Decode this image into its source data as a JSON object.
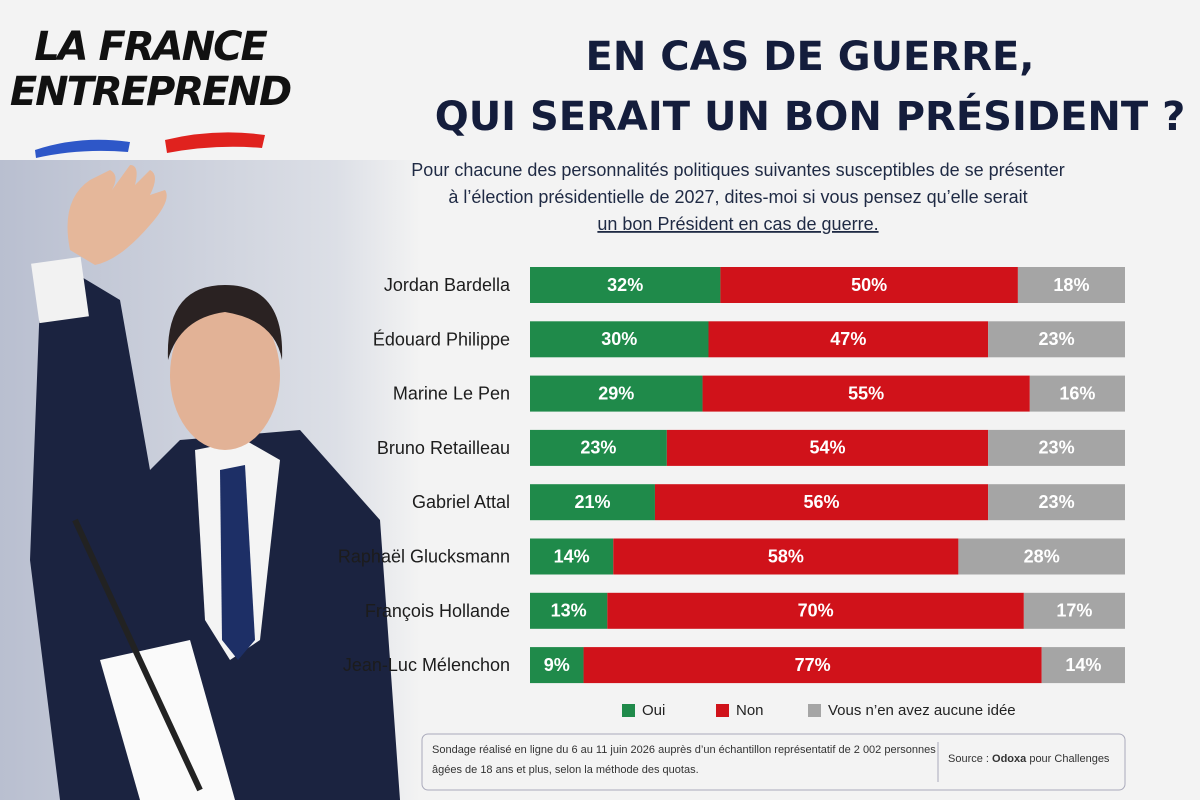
{
  "logo": [
    "LA FRANCE",
    "ENTREPREND"
  ],
  "title": [
    "EN CAS DE GUERRE,",
    "QUI SERAIT UN BON PRÉSIDENT ?"
  ],
  "subtitle": [
    "Pour chacune des personnalités politiques suivantes susceptibles de se présenter",
    "à l’élection présidentielle de 2027, dites-moi si vous pensez qu’elle serait"
  ],
  "subtitle_emphasis": "un bon Président en cas de guerre.",
  "chart_data": {
    "type": "stacked-bar-horizontal",
    "categories": [
      "Jordan Bardella",
      "Édouard Philippe",
      "Marine Le Pen",
      "Bruno Retailleau",
      "Gabriel Attal",
      "Raphaël Glucksmann",
      "François Hollande",
      "Jean-Luc Mélenchon"
    ],
    "series": [
      {
        "name": "Oui",
        "color": "#1f8a4a",
        "values": [
          32,
          30,
          29,
          23,
          21,
          14,
          13,
          9
        ],
        "value_labels": [
          "32%",
          "30%",
          "29%",
          "23%",
          "21%",
          "14%",
          "13%",
          "9%"
        ]
      },
      {
        "name": "Non",
        "color": "#d0121a",
        "values": [
          50,
          47,
          55,
          54,
          56,
          58,
          70,
          77
        ],
        "value_labels": [
          "50%",
          "47%",
          "55%",
          "54%",
          "56%",
          "58%",
          "70%",
          "77%"
        ]
      },
      {
        "name": "Vous n’en avez aucune idée",
        "color": "#a5a5a5",
        "values": [
          18,
          23,
          16,
          23,
          23,
          28,
          17,
          14
        ],
        "value_labels": [
          "18%",
          "23%",
          "16%",
          "23%",
          "23%",
          "28%",
          "17%",
          "14%"
        ]
      }
    ]
  },
  "note": [
    "Sondage réalisé en ligne du 6 au 11 juin 2026 auprès d’un échantillon représentatif de 2 002 personnes",
    "âgées de 18 ans et plus, selon la méthode des quotas."
  ],
  "source": {
    "label": "Source : ",
    "name": "Odoxa",
    "suffix": " pour Challenges"
  }
}
